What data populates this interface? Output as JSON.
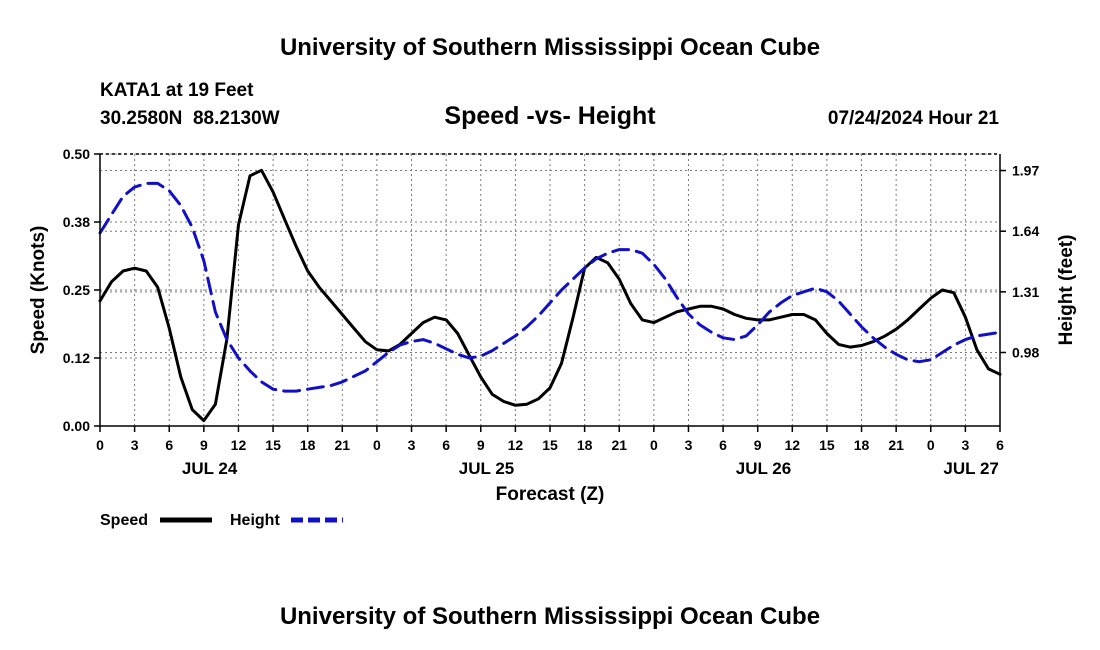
{
  "header": {
    "title_top": "University of Southern Mississippi Ocean Cube",
    "station": "KATA1 at 19 Feet",
    "coords": "30.2580N  88.2130W",
    "chart_title": "Speed -vs- Height",
    "date": "07/24/2024 Hour 21",
    "title_bottom": "University of Southern Mississippi Ocean Cube"
  },
  "legend": {
    "speed_label": "Speed",
    "height_label": "Height"
  },
  "colors": {
    "speed": "#000000",
    "height": "#1010c8",
    "grid": "#7a7a7a"
  },
  "chart_data": {
    "type": "line",
    "title": "Speed -vs- Height",
    "xlabel": "Forecast (Z)",
    "ylabel": "Speed (Knots)",
    "y2label": "Height (feet)",
    "xlim": [
      0,
      78
    ],
    "ylim": [
      0,
      0.5
    ],
    "y2lim": [
      0.58,
      2.06
    ],
    "x_ticks": [
      0,
      3,
      6,
      9,
      12,
      15,
      18,
      21,
      24,
      27,
      30,
      33,
      36,
      39,
      42,
      45,
      48,
      51,
      54,
      57,
      60,
      63,
      66,
      69,
      72,
      75,
      78
    ],
    "x_tick_labels": [
      "0",
      "3",
      "6",
      "9",
      "12",
      "15",
      "18",
      "21",
      "0",
      "3",
      "6",
      "9",
      "12",
      "15",
      "18",
      "21",
      "0",
      "3",
      "6",
      "9",
      "12",
      "15",
      "18",
      "21",
      "0",
      "3",
      "6"
    ],
    "date_labels": [
      {
        "x": 9.5,
        "label": "JUL 24"
      },
      {
        "x": 33.5,
        "label": "JUL 25"
      },
      {
        "x": 57.5,
        "label": "JUL 26"
      },
      {
        "x": 75.5,
        "label": "JUL 27"
      }
    ],
    "y_ticks": [
      0,
      0.125,
      0.25,
      0.375,
      0.5
    ],
    "y_tick_labels": [
      "0.00",
      "0.12",
      "0.25",
      "0.38",
      "0.50"
    ],
    "y2_ticks": [
      0.98,
      1.31,
      1.64,
      1.97
    ],
    "y2_tick_labels": [
      "0.98",
      "1.31",
      "1.64",
      "1.97"
    ],
    "series": [
      {
        "name": "Speed",
        "axis": "left",
        "style": "solid",
        "x": [
          0,
          1,
          2,
          3,
          4,
          5,
          6,
          7,
          8,
          9,
          10,
          11,
          12,
          13,
          14,
          15,
          16,
          17,
          18,
          19,
          20,
          21,
          22,
          23,
          24,
          25,
          26,
          27,
          28,
          29,
          30,
          31,
          32,
          33,
          34,
          35,
          36,
          37,
          38,
          39,
          40,
          41,
          42,
          43,
          44,
          45,
          46,
          47,
          48,
          49,
          50,
          51,
          52,
          53,
          54,
          55,
          56,
          57,
          58,
          59,
          60,
          61,
          62,
          63,
          64,
          65,
          66,
          67,
          68,
          69,
          70,
          71,
          72,
          73,
          74,
          75,
          76,
          77,
          78
        ],
        "values": [
          0.23,
          0.265,
          0.285,
          0.29,
          0.285,
          0.255,
          0.18,
          0.09,
          0.03,
          0.01,
          0.04,
          0.16,
          0.37,
          0.46,
          0.47,
          0.43,
          0.38,
          0.33,
          0.285,
          0.255,
          0.23,
          0.205,
          0.18,
          0.155,
          0.14,
          0.138,
          0.15,
          0.17,
          0.19,
          0.2,
          0.195,
          0.17,
          0.13,
          0.09,
          0.058,
          0.045,
          0.038,
          0.04,
          0.05,
          0.07,
          0.115,
          0.2,
          0.29,
          0.31,
          0.3,
          0.27,
          0.225,
          0.195,
          0.19,
          0.2,
          0.21,
          0.215,
          0.22,
          0.22,
          0.215,
          0.205,
          0.198,
          0.195,
          0.195,
          0.2,
          0.205,
          0.205,
          0.195,
          0.17,
          0.15,
          0.145,
          0.148,
          0.155,
          0.165,
          0.178,
          0.195,
          0.215,
          0.235,
          0.25,
          0.245,
          0.2,
          0.14,
          0.105,
          0.095
        ]
      },
      {
        "name": "Height",
        "axis": "right",
        "style": "dashed",
        "x": [
          0,
          1,
          2,
          3,
          4,
          5,
          6,
          7,
          8,
          9,
          10,
          11,
          12,
          13,
          14,
          15,
          16,
          17,
          18,
          19,
          20,
          21,
          22,
          23,
          24,
          25,
          26,
          27,
          28,
          29,
          30,
          31,
          32,
          33,
          34,
          35,
          36,
          37,
          38,
          39,
          40,
          41,
          42,
          43,
          44,
          45,
          46,
          47,
          48,
          49,
          50,
          51,
          52,
          53,
          54,
          55,
          56,
          57,
          58,
          59,
          60,
          61,
          62,
          63,
          64,
          65,
          66,
          67,
          68,
          69,
          70,
          71,
          72,
          73,
          74,
          75,
          76,
          77,
          78
        ],
        "values": [
          1.63,
          1.73,
          1.83,
          1.88,
          1.9,
          1.9,
          1.86,
          1.78,
          1.66,
          1.48,
          1.2,
          1.05,
          0.95,
          0.88,
          0.82,
          0.78,
          0.77,
          0.77,
          0.78,
          0.79,
          0.8,
          0.82,
          0.85,
          0.88,
          0.93,
          0.98,
          1.02,
          1.04,
          1.05,
          1.03,
          1.0,
          0.97,
          0.95,
          0.96,
          0.99,
          1.03,
          1.07,
          1.12,
          1.18,
          1.25,
          1.32,
          1.38,
          1.44,
          1.49,
          1.52,
          1.54,
          1.54,
          1.52,
          1.46,
          1.38,
          1.28,
          1.19,
          1.13,
          1.09,
          1.06,
          1.05,
          1.07,
          1.13,
          1.2,
          1.25,
          1.29,
          1.31,
          1.33,
          1.31,
          1.26,
          1.19,
          1.12,
          1.06,
          1.01,
          0.97,
          0.94,
          0.93,
          0.94,
          0.98,
          1.02,
          1.05,
          1.07,
          1.08,
          1.09
        ]
      }
    ]
  }
}
